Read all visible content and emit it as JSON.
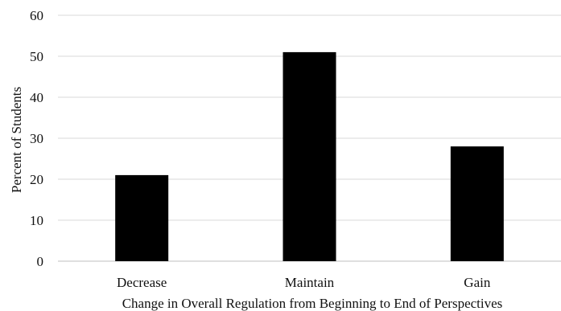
{
  "chart_data": {
    "type": "bar",
    "categories": [
      "Decrease",
      "Maintain",
      "Gain"
    ],
    "values": [
      21,
      51,
      28
    ],
    "title": "",
    "xlabel": "Change in Overall Regulation from Beginning to End of Perspectives",
    "ylabel": "Percent of Students",
    "ylim": [
      0,
      60
    ],
    "yticks": [
      0,
      10,
      20,
      30,
      40,
      50,
      60
    ],
    "grid": true,
    "legend": "none",
    "bar_color": "#000000"
  }
}
